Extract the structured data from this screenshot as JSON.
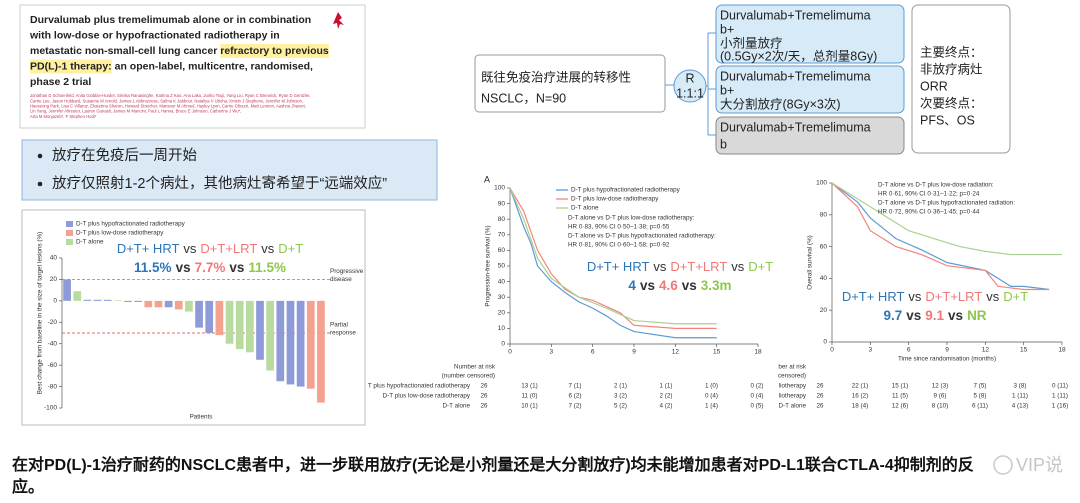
{
  "paper": {
    "highlight_color": "#fff0a0",
    "title_lines": [
      [
        {
          "text": "Durvalumab plus tremelimumab alone or in combination"
        }
      ],
      [
        {
          "text": "with low-dose or hypofractionated radiotherapy in"
        }
      ],
      [
        {
          "text": "metastatic non-small-cell lung cancer "
        },
        {
          "text": "refractory to previous",
          "highlight": true
        }
      ],
      [
        {
          "text": "PD(L)-1 therapy:",
          "highlight": true
        },
        {
          "text": " an open-label, multicentre, randomised,"
        }
      ],
      [
        {
          "text": "phase 2 trial"
        }
      ]
    ],
    "authors": [
      "Jonathan D Schoenfeld, Anita Giobbie-Hurder, Srinika Ranasinghe, Katrina Z Kao, Ana Lako, Junko Tsuji, Yang Liu, Ryan C Brennick, Ryan D Gentzler,",
      "Carrie Lee, Jason Hubbard, Susanne M Arnold, James L Abbruzzese, Salma K Jabbour, Nataliya V Uboha, Kristin J Stephens, Jennifer M Johnson,",
      "Haeseong Park, Lisa C Villaruz, Ekaterina Sharon, Howard Streicher, Mansoor M Ahmed, Hayley Lyon, Carrie Cibuzzi, Matt Lennon, Aashna Jhaveri,",
      "Lin Yang, Jennifer Altreuter, Lauren Gunasti, James M Mancini, Paul L Hanna, Bruce E Johnson, Catherine J Wu*,",
      "Arta M Monjazeb*, F Stephen Hodi*"
    ]
  },
  "flow": {
    "population": [
      "既往免疫治疗进展的转移性",
      "NSCLC，N=90"
    ],
    "randomization": [
      "R",
      "1:1:1"
    ],
    "arms": [
      [
        "Durvalumab+Tremelimuma",
        "b+",
        "小剂量放疗",
        "(0.5Gy×2次/天，总剂量8Gy)"
      ],
      [
        "Durvalumab+Tremelimuma",
        "b+",
        "大分割放疗(8Gy×3次)"
      ],
      [
        "Durvalumab+Tremelimuma",
        "b"
      ]
    ],
    "endpoints": [
      "主要终点：",
      "非放疗病灶",
      "ORR",
      "次要终点：",
      "PFS、OS"
    ]
  },
  "bullets": [
    "放疗在免疫后一周开始",
    "放疗仅照射1-2个病灶，其他病灶寄希望于“远端效应”"
  ],
  "conclusion": [
    "在对PD(L)-1治疗耐药的NSCLC患者中，进一步联用放疗(无论是小剂量还是大分割放疗)均未能增加患者对PD-L1联合CTLA-4抑制剂的反",
    "应。"
  ],
  "watermark": "VIP说",
  "chart_data": [
    {
      "type": "bar",
      "y_label": "Best change from baseline in the size of target lesions (%)",
      "x_label": "Patients",
      "categories": [
        null,
        null,
        null,
        null,
        null,
        null,
        null,
        null,
        null,
        null,
        null,
        null,
        null,
        null,
        null,
        null,
        null,
        null,
        null,
        null,
        null,
        null,
        null,
        null,
        null,
        null
      ],
      "series": [
        {
          "name": "D-T plus hypofractionated radiotherapy",
          "color": "#8e9bd8",
          "values": [
            20,
            null,
            1,
            1,
            1,
            null,
            -1,
            -1,
            null,
            null,
            -6,
            null,
            null,
            -25,
            -30,
            null,
            null,
            null,
            null,
            -55,
            null,
            -75,
            -78,
            -80,
            null,
            null
          ]
        },
        {
          "name": "D-T plus low-dose radiotherapy",
          "color": "#f2a28f",
          "values": [
            null,
            null,
            null,
            null,
            null,
            null,
            null,
            null,
            -6,
            -6,
            null,
            -8,
            null,
            null,
            null,
            -32,
            null,
            null,
            null,
            null,
            null,
            null,
            null,
            null,
            -82,
            -95
          ]
        },
        {
          "name": "D-T alone",
          "color": "#b8dca0",
          "values": [
            null,
            9,
            null,
            null,
            null,
            0.5,
            null,
            null,
            null,
            null,
            null,
            null,
            -10,
            null,
            null,
            null,
            -40,
            -45,
            -48,
            null,
            -65,
            null,
            null,
            null,
            null,
            null
          ]
        }
      ],
      "ylim": [
        -100,
        40
      ],
      "yticks": [
        40,
        20,
        0,
        -20,
        -40,
        -60,
        -80,
        -100
      ],
      "reference_lines": [
        {
          "value": 20,
          "label": [
            "Progressive",
            "disease"
          ]
        },
        {
          "value": -30,
          "label": [
            "Partial",
            "response"
          ]
        }
      ],
      "legend": "upper left",
      "comparison": {
        "arms": [
          "D+T+ HRT",
          "D+T+LRT",
          "D+T"
        ],
        "sep": "vs",
        "values": [
          "11.5%",
          "7.7%",
          "11.5%"
        ],
        "colors": [
          "#2e75b6",
          "#f07878",
          "#8cc84b"
        ]
      }
    },
    {
      "type": "line",
      "panel_label": "A",
      "y_label": "Progression-free survival (%)",
      "xlim": [
        0,
        18
      ],
      "xticks": [
        0,
        3,
        6,
        9,
        12,
        15,
        18
      ],
      "ylim": [
        0,
        100
      ],
      "yticks": [
        0,
        10,
        20,
        30,
        40,
        50,
        60,
        70,
        80,
        90,
        100
      ],
      "legend": "upper right",
      "series": [
        {
          "name": "D-T plus hypofractionated radiotherapy",
          "color": "#5b9bd5",
          "x": [
            0,
            1,
            1.5,
            2,
            3,
            4,
            5,
            6,
            7,
            8,
            9,
            12,
            15
          ],
          "values": [
            100,
            75,
            65,
            50,
            40,
            33,
            27,
            23,
            18,
            12,
            8,
            4,
            4
          ]
        },
        {
          "name": "D-T plus low-dose radiotherapy",
          "color": "#f4837d",
          "x": [
            0,
            1,
            2,
            3,
            4,
            5,
            6,
            8,
            9,
            12,
            15
          ],
          "values": [
            100,
            85,
            60,
            45,
            35,
            30,
            28,
            20,
            12,
            10,
            10
          ]
        },
        {
          "name": "D-T alone",
          "color": "#a9d18e",
          "x": [
            0,
            1,
            2,
            3,
            5,
            7,
            9,
            12,
            15
          ],
          "values": [
            100,
            80,
            55,
            42,
            30,
            23,
            15,
            13,
            13
          ]
        }
      ],
      "stats": [
        "D-T alone vs D-T plus low-dose radiotherapy:",
        "HR 0·83, 90% CI 0·50–1·38; p=0·55",
        "D-T alone vs D-T plus hypofractionated radiotherapy:",
        "HR 0·81, 90% CI 0·60–1·58; p=0·92"
      ],
      "comparison": {
        "arms": [
          "D+T+ HRT",
          "D+T+LRT",
          "D+T"
        ],
        "sep": "vs",
        "values": [
          "4",
          "4.6",
          "3.3m"
        ],
        "colors": [
          "#2e75b6",
          "#f07878",
          "#8cc84b"
        ]
      },
      "risk_table": {
        "header": [
          "Number at risk",
          "(number censored)"
        ],
        "rows": [
          {
            "label": "T plus hypofractionated radiotherapy",
            "cells": [
              "26",
              "13 (1)",
              "7 (1)",
              "2 (1)",
              "1 (1)",
              "1 (0)",
              "0 (2)"
            ]
          },
          {
            "label": "D-T plus low-dose radiotherapy",
            "cells": [
              "26",
              "11 (0)",
              "6 (2)",
              "3 (2)",
              "2 (2)",
              "0 (4)",
              "0 (4)"
            ]
          },
          {
            "label": "D-T alone",
            "cells": [
              "26",
              "10 (1)",
              "7 (2)",
              "5 (2)",
              "4 (2)",
              "1 (4)",
              "0 (5)"
            ]
          }
        ]
      }
    },
    {
      "type": "line",
      "y_label": "Overall survival (%)",
      "x_label": "Time since randomisation (months)",
      "xlim": [
        0,
        18
      ],
      "xticks": [
        0,
        3,
        6,
        9,
        12,
        15,
        18
      ],
      "ylim": [
        0,
        100
      ],
      "yticks": [
        0,
        20,
        40,
        60,
        80,
        100
      ],
      "series": [
        {
          "color": "#5b9bd5",
          "x": [
            0,
            2,
            3,
            5,
            7,
            9,
            12,
            13,
            14,
            15,
            17
          ],
          "values": [
            100,
            88,
            78,
            65,
            58,
            50,
            45,
            40,
            35,
            35,
            33
          ]
        },
        {
          "color": "#f4837d",
          "x": [
            0,
            2,
            3,
            5,
            7,
            9,
            12,
            13,
            15,
            17
          ],
          "values": [
            100,
            85,
            70,
            60,
            55,
            48,
            45,
            35,
            33,
            33
          ]
        },
        {
          "color": "#a9d18e",
          "x": [
            0,
            2,
            4,
            6,
            8,
            10,
            12,
            14,
            18
          ],
          "values": [
            100,
            90,
            80,
            70,
            65,
            60,
            57,
            55,
            55
          ]
        }
      ],
      "stats": [
        "D-T alone vs D-T plus low-dose radiation:",
        "HR 0·61, 90% CI 0·31–1·22; p=0·24",
        "D-T alone vs D-T plus hypofractionated radiation:",
        "HR 0·72, 90% CI 0·36–1·45; p=0·44"
      ],
      "comparison": {
        "arms": [
          "D+T+ HRT",
          "D+T+LRT",
          "D+T"
        ],
        "sep": "vs",
        "values": [
          "9.7",
          "9.1",
          "NR"
        ],
        "colors": [
          "#2e75b6",
          "#f07878",
          "#8cc84b"
        ]
      },
      "risk_table": {
        "header": [
          "ber at risk",
          "censored)"
        ],
        "rows": [
          {
            "label": "liotherapy",
            "cells": [
              "26",
              "22 (1)",
              "15 (1)",
              "12 (3)",
              "7 (5)",
              "3 (8)",
              "0 (11)"
            ]
          },
          {
            "label": "liotherapy",
            "cells": [
              "26",
              "16 (2)",
              "11 (5)",
              "9 (6)",
              "5 (8)",
              "1 (11)",
              "1 (11)"
            ]
          },
          {
            "label": "D-T alone",
            "cells": [
              "26",
              "18 (4)",
              "12 (6)",
              "8 (10)",
              "6 (11)",
              "4 (13)",
              "1 (16)"
            ]
          }
        ]
      }
    }
  ]
}
